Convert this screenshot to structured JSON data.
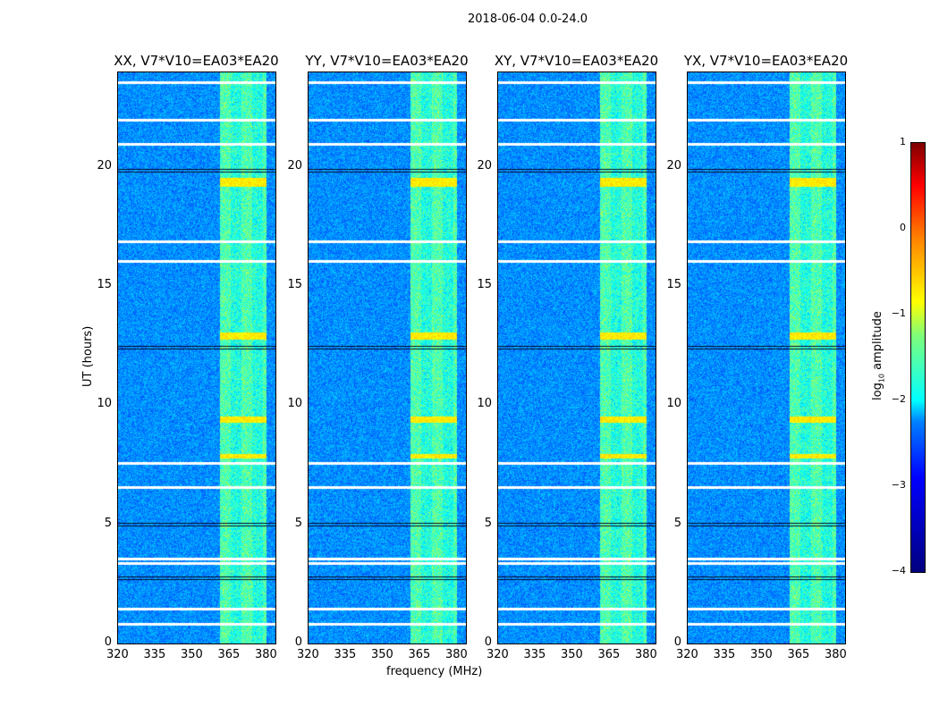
{
  "suptitle": "2018-06-04 0.0-24.0",
  "chart_data": {
    "type": "heatmap",
    "title": "2018-06-04 0.0-24.0",
    "xlabel": "frequency (MHz)",
    "ylabel": "UT (hours)",
    "xlim": [
      320,
      384
    ],
    "ylim": [
      0,
      24
    ],
    "xticks": [
      "320",
      "335",
      "350",
      "365",
      "380"
    ],
    "yticks": [
      "0",
      "5",
      "10",
      "15",
      "20"
    ],
    "panels": [
      {
        "title": "XX, V7*V10=EA03*EA20"
      },
      {
        "title": "YY, V7*V10=EA03*EA20"
      },
      {
        "title": "XY, V7*V10=EA03*EA20"
      },
      {
        "title": "YX, V7*V10=EA03*EA20"
      }
    ],
    "rfi_band_mhz": [
      361,
      380
    ],
    "flagged_hours": [
      0.85,
      1.5,
      3.4,
      3.6,
      6.6,
      7.6,
      16.1,
      16.9,
      21.0,
      22.0,
      23.6
    ],
    "dark_bands_hours": [
      2.8,
      5.0,
      12.5,
      19.9
    ],
    "colorbar": {
      "label": "log10 amplitude",
      "label_main": "log",
      "label_sub": "10",
      "label_rest": " amplitude",
      "range": [
        -4,
        1
      ],
      "ticks": [
        "1",
        "0",
        "−1",
        "−2",
        "−3",
        "−4"
      ]
    }
  }
}
